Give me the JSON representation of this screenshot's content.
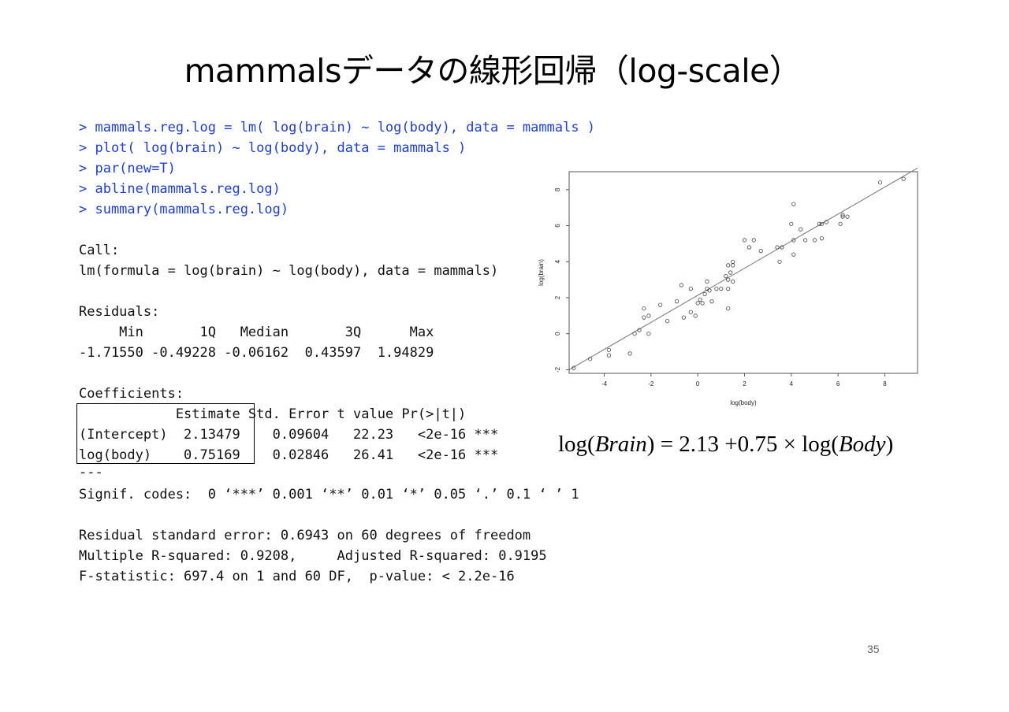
{
  "slide": {
    "title": "mammalsデータの線形回帰（log-scale）",
    "page_number": "35",
    "colors": {
      "command": "#1f3fc9",
      "output": "#111111"
    }
  },
  "code": {
    "commands": [
      "> mammals.reg.log = lm( log(brain) ~ log(body), data = mammals )",
      "> plot( log(brain) ~ log(body), data = mammals )",
      "> par(new=T)",
      "> abline(mammals.reg.log)",
      "> summary(mammals.reg.log)"
    ],
    "call_label": "Call:",
    "call_formula": "lm(formula = log(brain) ~ log(body), data = mammals)",
    "residuals_label": "Residuals:",
    "residuals_header": "     Min       1Q   Median       3Q      Max",
    "residuals_values": "-1.71550 -0.49228 -0.06162  0.43597  1.94829",
    "coefficients_label": "Coefficients:",
    "coef_header": "            Estimate Std. Error t value Pr(>|t|)",
    "coef_rows": [
      "(Intercept)  2.13479    0.09604   22.23   <2e-16 ***",
      "log(body)    0.75169    0.02846   26.41   <2e-16 ***"
    ],
    "separator": "---",
    "signif_codes": "Signif. codes:  0 ‘***’ 0.001 ‘**’ 0.01 ‘*’ 0.05 ‘.’ 0.1 ‘ ’ 1",
    "resid_se": "Residual standard error: 0.6943 on 60 degrees of freedom",
    "r_squared": "Multiple R-squared: 0.9208,     Adjusted R-squared: 0.9195",
    "f_stat": "F-statistic: 697.4 on 1 and 60 DF,  p-value: < 2.2e-16"
  },
  "formula": {
    "lhs_prefix": "log(",
    "lhs_var": "Brain",
    "middle": ") = 2.13 +0.75 × log(",
    "rhs_var": "Body",
    "suffix": ")"
  },
  "chart_data": {
    "type": "scatter",
    "xlabel": "log(body)",
    "ylabel": "log(brain)",
    "xlim": [
      -5.5,
      9.4
    ],
    "ylim": [
      -2.2,
      9.0
    ],
    "x_ticks": [
      "-4",
      "-2",
      "0",
      "2",
      "4",
      "6",
      "8"
    ],
    "y_ticks": [
      "-2",
      "0",
      "2",
      "4",
      "6",
      "8"
    ],
    "regression_line": {
      "intercept": 2.13479,
      "slope": 0.75169
    },
    "grid": false,
    "points": [
      [
        -5.3,
        -1.9
      ],
      [
        -4.6,
        -1.4
      ],
      [
        -3.8,
        -0.9
      ],
      [
        -3.8,
        -1.2
      ],
      [
        -2.9,
        -1.1
      ],
      [
        -2.7,
        0.0
      ],
      [
        -2.5,
        0.2
      ],
      [
        -2.3,
        1.4
      ],
      [
        -2.3,
        0.9
      ],
      [
        -2.1,
        1.0
      ],
      [
        -2.1,
        0.0
      ],
      [
        -1.6,
        1.6
      ],
      [
        -1.3,
        0.7
      ],
      [
        -0.9,
        1.8
      ],
      [
        -0.7,
        2.7
      ],
      [
        -0.6,
        0.9
      ],
      [
        -0.3,
        2.5
      ],
      [
        -0.3,
        1.2
      ],
      [
        -0.1,
        1.0
      ],
      [
        0.0,
        1.7
      ],
      [
        0.1,
        1.9
      ],
      [
        0.2,
        1.7
      ],
      [
        0.3,
        2.2
      ],
      [
        0.4,
        2.5
      ],
      [
        0.4,
        2.9
      ],
      [
        0.5,
        2.4
      ],
      [
        0.6,
        1.8
      ],
      [
        0.8,
        2.5
      ],
      [
        1.0,
        2.5
      ],
      [
        1.2,
        3.2
      ],
      [
        1.3,
        2.5
      ],
      [
        1.3,
        3.8
      ],
      [
        1.3,
        3.0
      ],
      [
        1.3,
        1.4
      ],
      [
        1.4,
        3.4
      ],
      [
        1.5,
        4.0
      ],
      [
        1.5,
        2.9
      ],
      [
        1.5,
        3.8
      ],
      [
        2.0,
        5.2
      ],
      [
        2.2,
        4.8
      ],
      [
        2.4,
        5.2
      ],
      [
        2.7,
        4.6
      ],
      [
        3.4,
        4.8
      ],
      [
        3.5,
        4.0
      ],
      [
        3.6,
        4.8
      ],
      [
        4.0,
        6.1
      ],
      [
        4.1,
        5.2
      ],
      [
        4.1,
        4.4
      ],
      [
        4.1,
        7.2
      ],
      [
        4.4,
        5.8
      ],
      [
        4.6,
        5.2
      ],
      [
        5.0,
        5.2
      ],
      [
        5.2,
        6.1
      ],
      [
        5.3,
        6.1
      ],
      [
        5.3,
        5.3
      ],
      [
        5.5,
        6.2
      ],
      [
        6.1,
        6.1
      ],
      [
        6.2,
        6.5
      ],
      [
        6.2,
        6.6
      ],
      [
        7.8,
        8.4
      ],
      [
        8.8,
        8.6
      ],
      [
        6.4,
        6.5
      ]
    ]
  }
}
